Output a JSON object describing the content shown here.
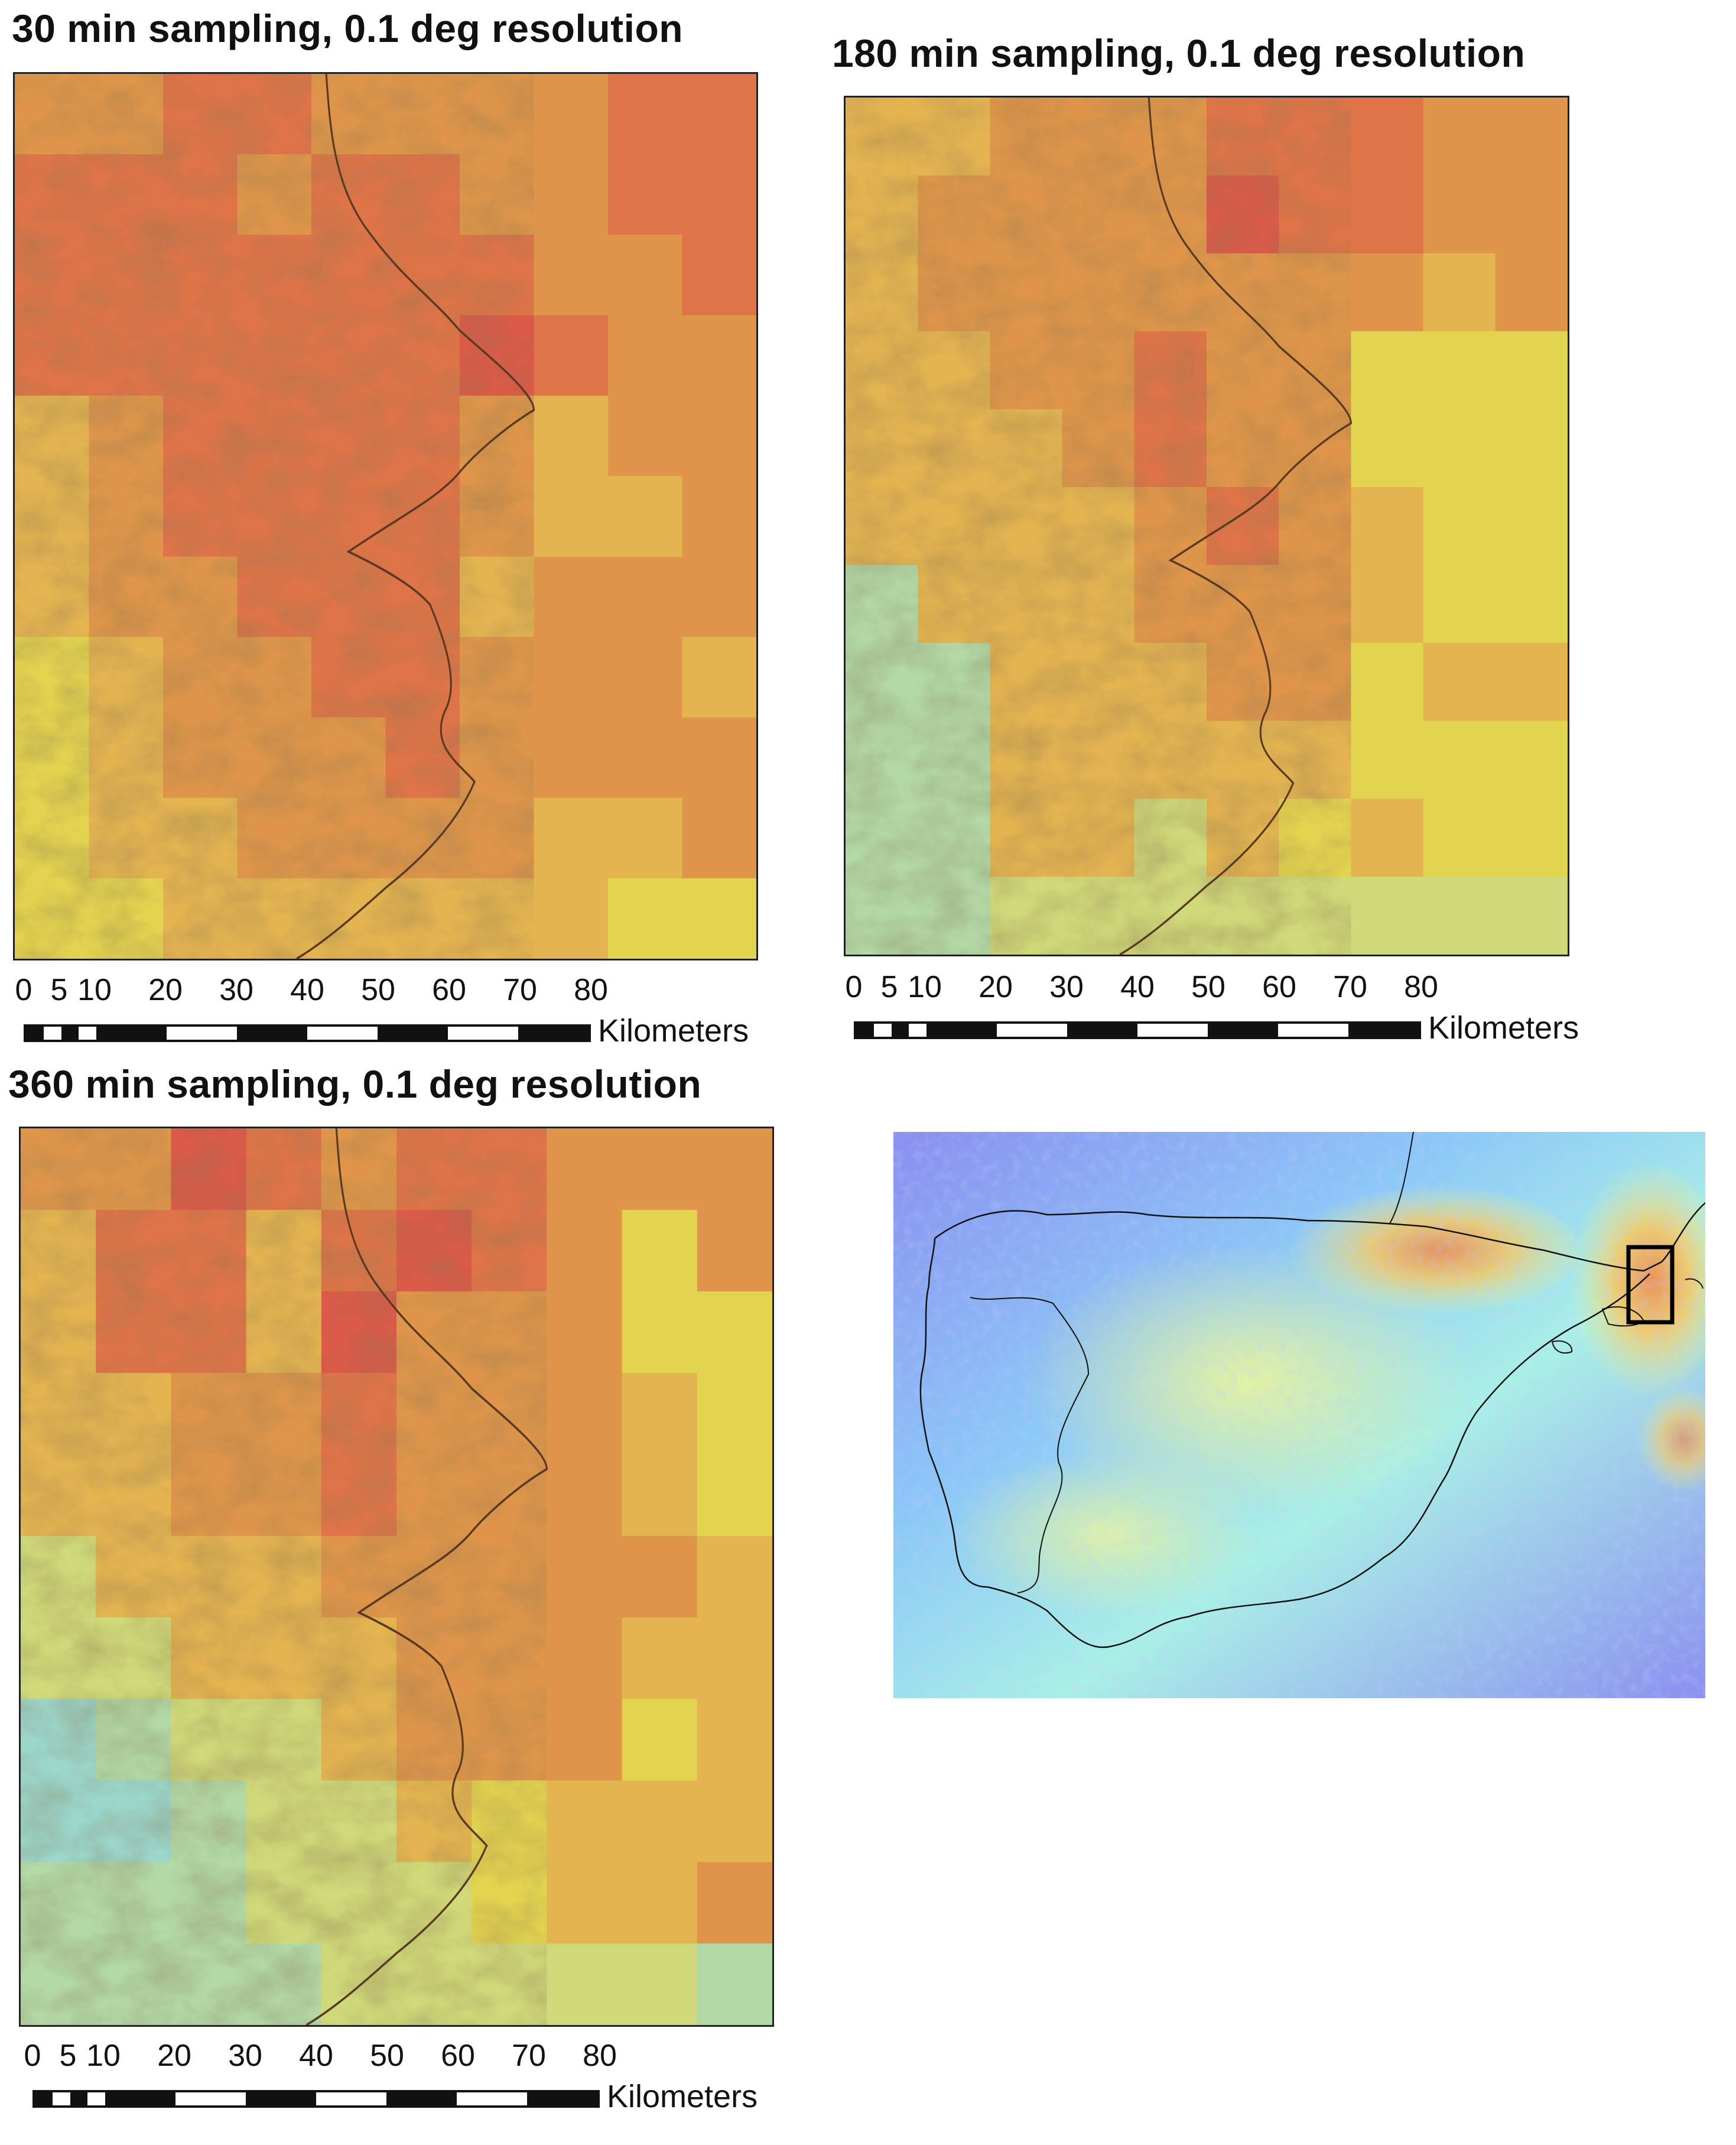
{
  "panels": [
    {
      "title": "30 min sampling, 0.1 deg resolution",
      "grid": {
        "cols": 10,
        "rows": 11
      }
    },
    {
      "title": "180 min sampling, 0.1 deg resolution",
      "grid": {
        "cols": 10,
        "rows": 11
      }
    },
    {
      "title": "360 min sampling, 0.1 deg resolution",
      "grid": {
        "cols": 10,
        "rows": 11
      }
    }
  ],
  "scalebar": {
    "ticks": [
      "0",
      "5",
      "10",
      "20",
      "30",
      "40",
      "50",
      "60",
      "70",
      "80"
    ],
    "tick_values_km": [
      0,
      5,
      10,
      20,
      30,
      40,
      50,
      60,
      70,
      80
    ],
    "unit": "Kilometers"
  },
  "colors": {
    "red": "#db5a48",
    "orange_red": "#df7448",
    "orange": "#e0964a",
    "light_orange": "#e4b450",
    "yellow": "#e3d44f",
    "yellow_green": "#cfd979",
    "light_green": "#b2d8a6",
    "cyan": "#9bd7cc",
    "blue": "#7f9ff0",
    "outline": "#222222"
  },
  "overview": {
    "description_marker": "study-area-box",
    "colors": [
      "#8a8ff0",
      "#8cc8f7",
      "#a9f0e6",
      "#ecf59a",
      "#f4c866",
      "#f08a4e"
    ]
  }
}
